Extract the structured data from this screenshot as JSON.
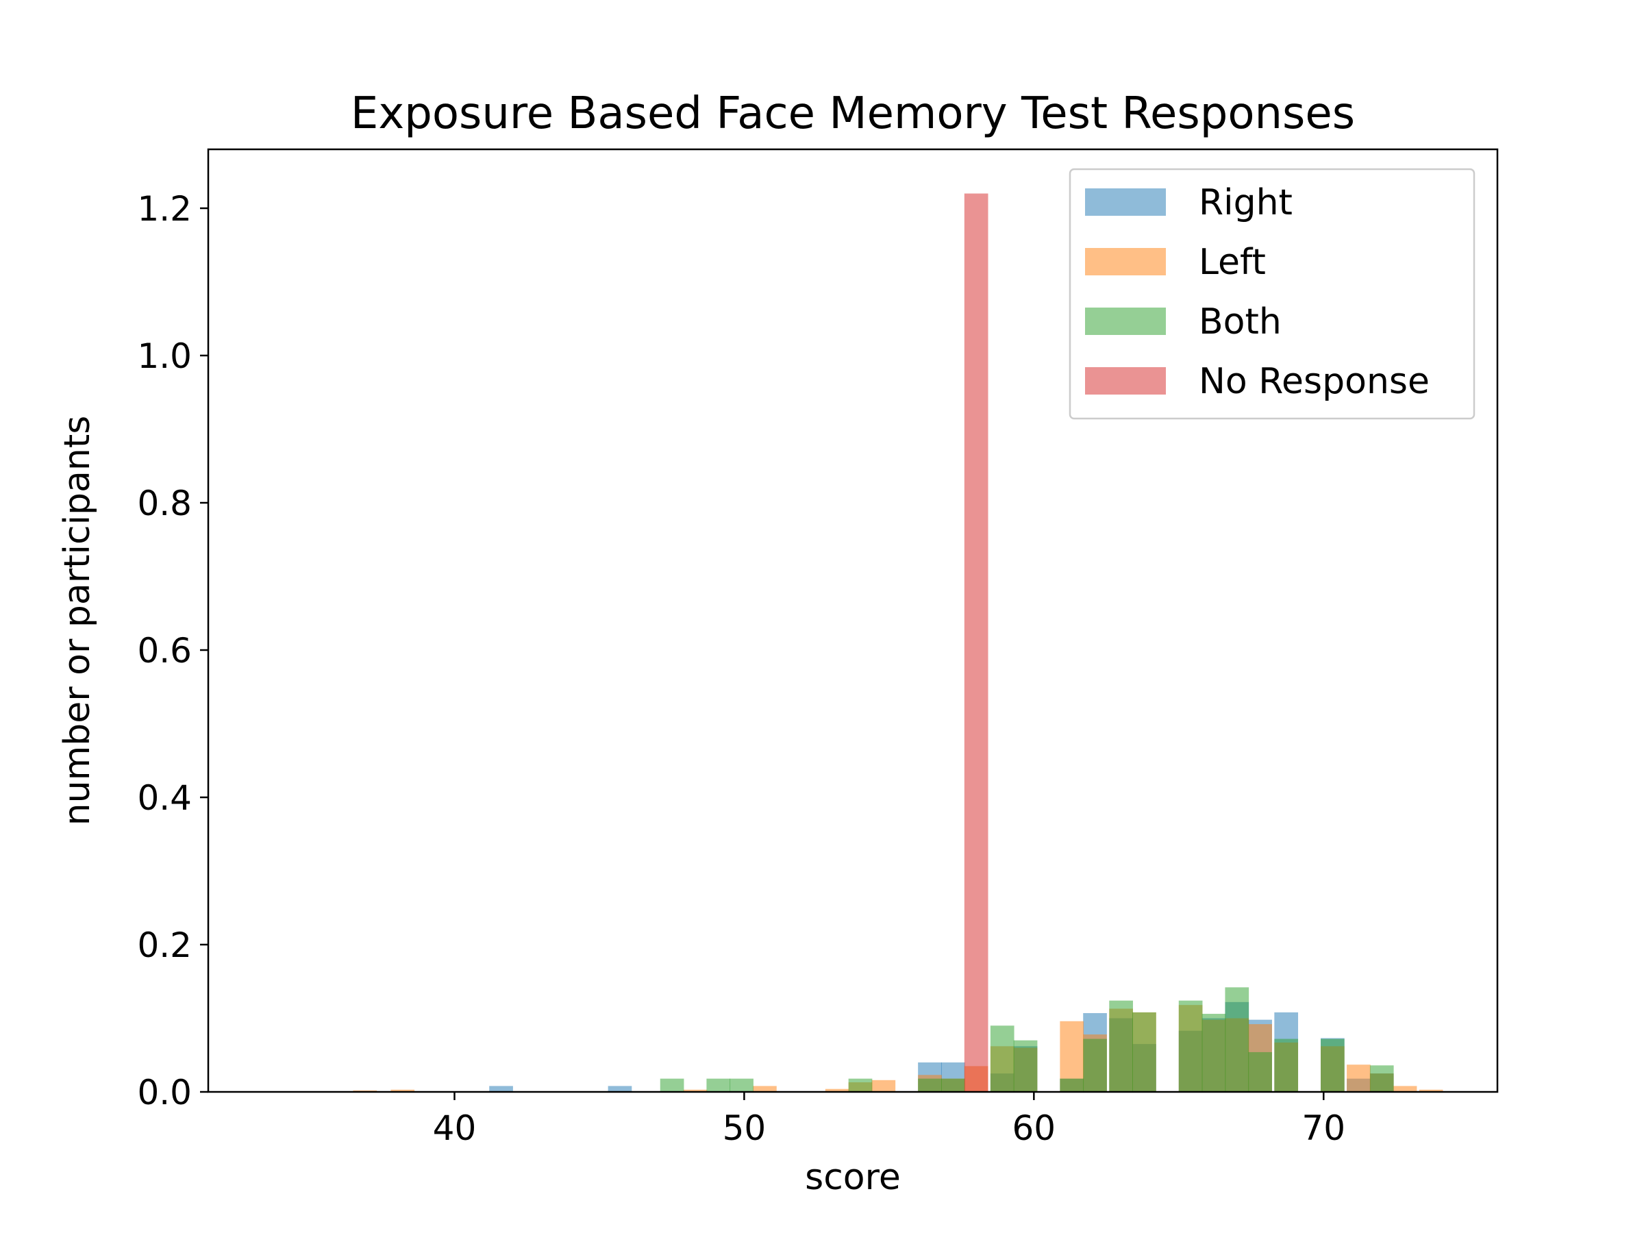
{
  "chart_data": {
    "type": "bar",
    "title": "Exposure Based Face Memory Test Responses",
    "xlabel": "score",
    "ylabel": "number or participants",
    "xlim": [
      31.5,
      76
    ],
    "ylim": [
      0,
      1.28
    ],
    "xticks": [
      40,
      50,
      60,
      70
    ],
    "yticks": [
      0.0,
      0.2,
      0.4,
      0.6,
      0.8,
      1.0,
      1.2
    ],
    "ytick_labels": [
      "0.0",
      "0.2",
      "0.4",
      "0.6",
      "0.8",
      "1.0",
      "1.2"
    ],
    "grid": false,
    "legend_position": "top-right",
    "bin_width": 0.82,
    "series": [
      {
        "name": "Right",
        "color": "#1f77b4",
        "bins": [
          {
            "x": 41.2,
            "y": 0.008
          },
          {
            "x": 45.3,
            "y": 0.008
          },
          {
            "x": 56.0,
            "y": 0.04
          },
          {
            "x": 56.8,
            "y": 0.04
          },
          {
            "x": 58.5,
            "y": 0.025
          },
          {
            "x": 59.3,
            "y": 0.062
          },
          {
            "x": 60.9,
            "y": 0.018
          },
          {
            "x": 61.7,
            "y": 0.107
          },
          {
            "x": 62.6,
            "y": 0.1
          },
          {
            "x": 63.4,
            "y": 0.065
          },
          {
            "x": 65.0,
            "y": 0.083
          },
          {
            "x": 65.8,
            "y": 0.1
          },
          {
            "x": 66.6,
            "y": 0.122
          },
          {
            "x": 67.4,
            "y": 0.098
          },
          {
            "x": 68.3,
            "y": 0.108
          },
          {
            "x": 69.9,
            "y": 0.073
          },
          {
            "x": 70.8,
            "y": 0.018
          },
          {
            "x": 71.6,
            "y": 0.025
          }
        ]
      },
      {
        "name": "Left",
        "color": "#ff7f0e",
        "bins": [
          {
            "x": 36.5,
            "y": 0.002
          },
          {
            "x": 37.8,
            "y": 0.003
          },
          {
            "x": 47.9,
            "y": 0.003
          },
          {
            "x": 50.3,
            "y": 0.008
          },
          {
            "x": 52.8,
            "y": 0.004
          },
          {
            "x": 53.6,
            "y": 0.013
          },
          {
            "x": 54.4,
            "y": 0.016
          },
          {
            "x": 56.0,
            "y": 0.023
          },
          {
            "x": 56.8,
            "y": 0.018
          },
          {
            "x": 57.6,
            "y": 0.035
          },
          {
            "x": 58.5,
            "y": 0.062
          },
          {
            "x": 59.3,
            "y": 0.06
          },
          {
            "x": 60.9,
            "y": 0.096
          },
          {
            "x": 61.7,
            "y": 0.078
          },
          {
            "x": 62.6,
            "y": 0.113
          },
          {
            "x": 63.4,
            "y": 0.108
          },
          {
            "x": 65.0,
            "y": 0.118
          },
          {
            "x": 65.8,
            "y": 0.098
          },
          {
            "x": 66.6,
            "y": 0.1
          },
          {
            "x": 67.4,
            "y": 0.092
          },
          {
            "x": 68.3,
            "y": 0.067
          },
          {
            "x": 69.9,
            "y": 0.062
          },
          {
            "x": 70.8,
            "y": 0.037
          },
          {
            "x": 71.6,
            "y": 0.025
          },
          {
            "x": 72.4,
            "y": 0.008
          },
          {
            "x": 73.3,
            "y": 0.003
          }
        ]
      },
      {
        "name": "Both",
        "color": "#2ca02c",
        "bins": [
          {
            "x": 47.1,
            "y": 0.018
          },
          {
            "x": 48.7,
            "y": 0.018
          },
          {
            "x": 49.5,
            "y": 0.018
          },
          {
            "x": 53.6,
            "y": 0.018
          },
          {
            "x": 56.0,
            "y": 0.018
          },
          {
            "x": 56.8,
            "y": 0.018
          },
          {
            "x": 58.5,
            "y": 0.09
          },
          {
            "x": 59.3,
            "y": 0.07
          },
          {
            "x": 60.9,
            "y": 0.018
          },
          {
            "x": 61.7,
            "y": 0.072
          },
          {
            "x": 62.6,
            "y": 0.124
          },
          {
            "x": 63.4,
            "y": 0.108
          },
          {
            "x": 65.0,
            "y": 0.124
          },
          {
            "x": 65.8,
            "y": 0.106
          },
          {
            "x": 66.6,
            "y": 0.142
          },
          {
            "x": 67.4,
            "y": 0.054
          },
          {
            "x": 68.3,
            "y": 0.072
          },
          {
            "x": 69.9,
            "y": 0.072
          },
          {
            "x": 71.6,
            "y": 0.036
          }
        ]
      },
      {
        "name": "No Response",
        "color": "#d62728",
        "bins": [
          {
            "x": 57.6,
            "y": 1.22
          }
        ]
      }
    ]
  }
}
